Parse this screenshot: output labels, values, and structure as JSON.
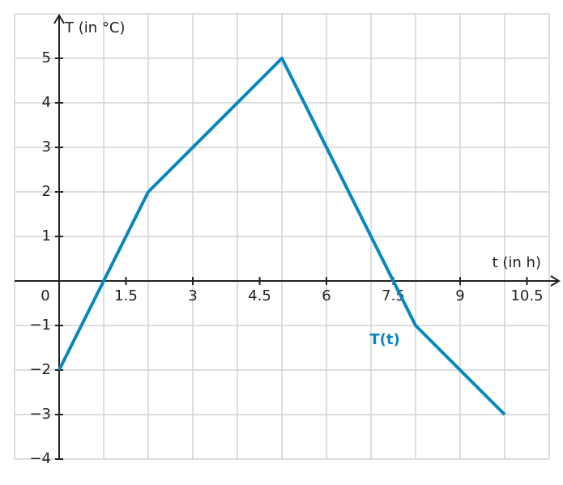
{
  "chart_data": {
    "type": "line",
    "x_label": "t (in h)",
    "y_label": "T (in °C)",
    "x": [
      0,
      2,
      5,
      8,
      10
    ],
    "series": [
      {
        "name": "T(t)",
        "color": "#0a87be",
        "values": [
          -2,
          2,
          5,
          -1,
          -3
        ]
      }
    ],
    "xlim": [
      -1,
      11
    ],
    "ylim": [
      -4,
      6
    ],
    "xticks": [
      0,
      1.5,
      3,
      4.5,
      6,
      7.5,
      9,
      10.5
    ],
    "yticks": [
      {
        "value": -4,
        "label": "−4"
      },
      {
        "value": -3,
        "label": "−3"
      },
      {
        "value": -2,
        "label": "−2"
      },
      {
        "value": -1,
        "label": "−1"
      },
      1,
      2,
      3,
      4,
      5
    ],
    "grid": true,
    "grid_step": 1
  }
}
